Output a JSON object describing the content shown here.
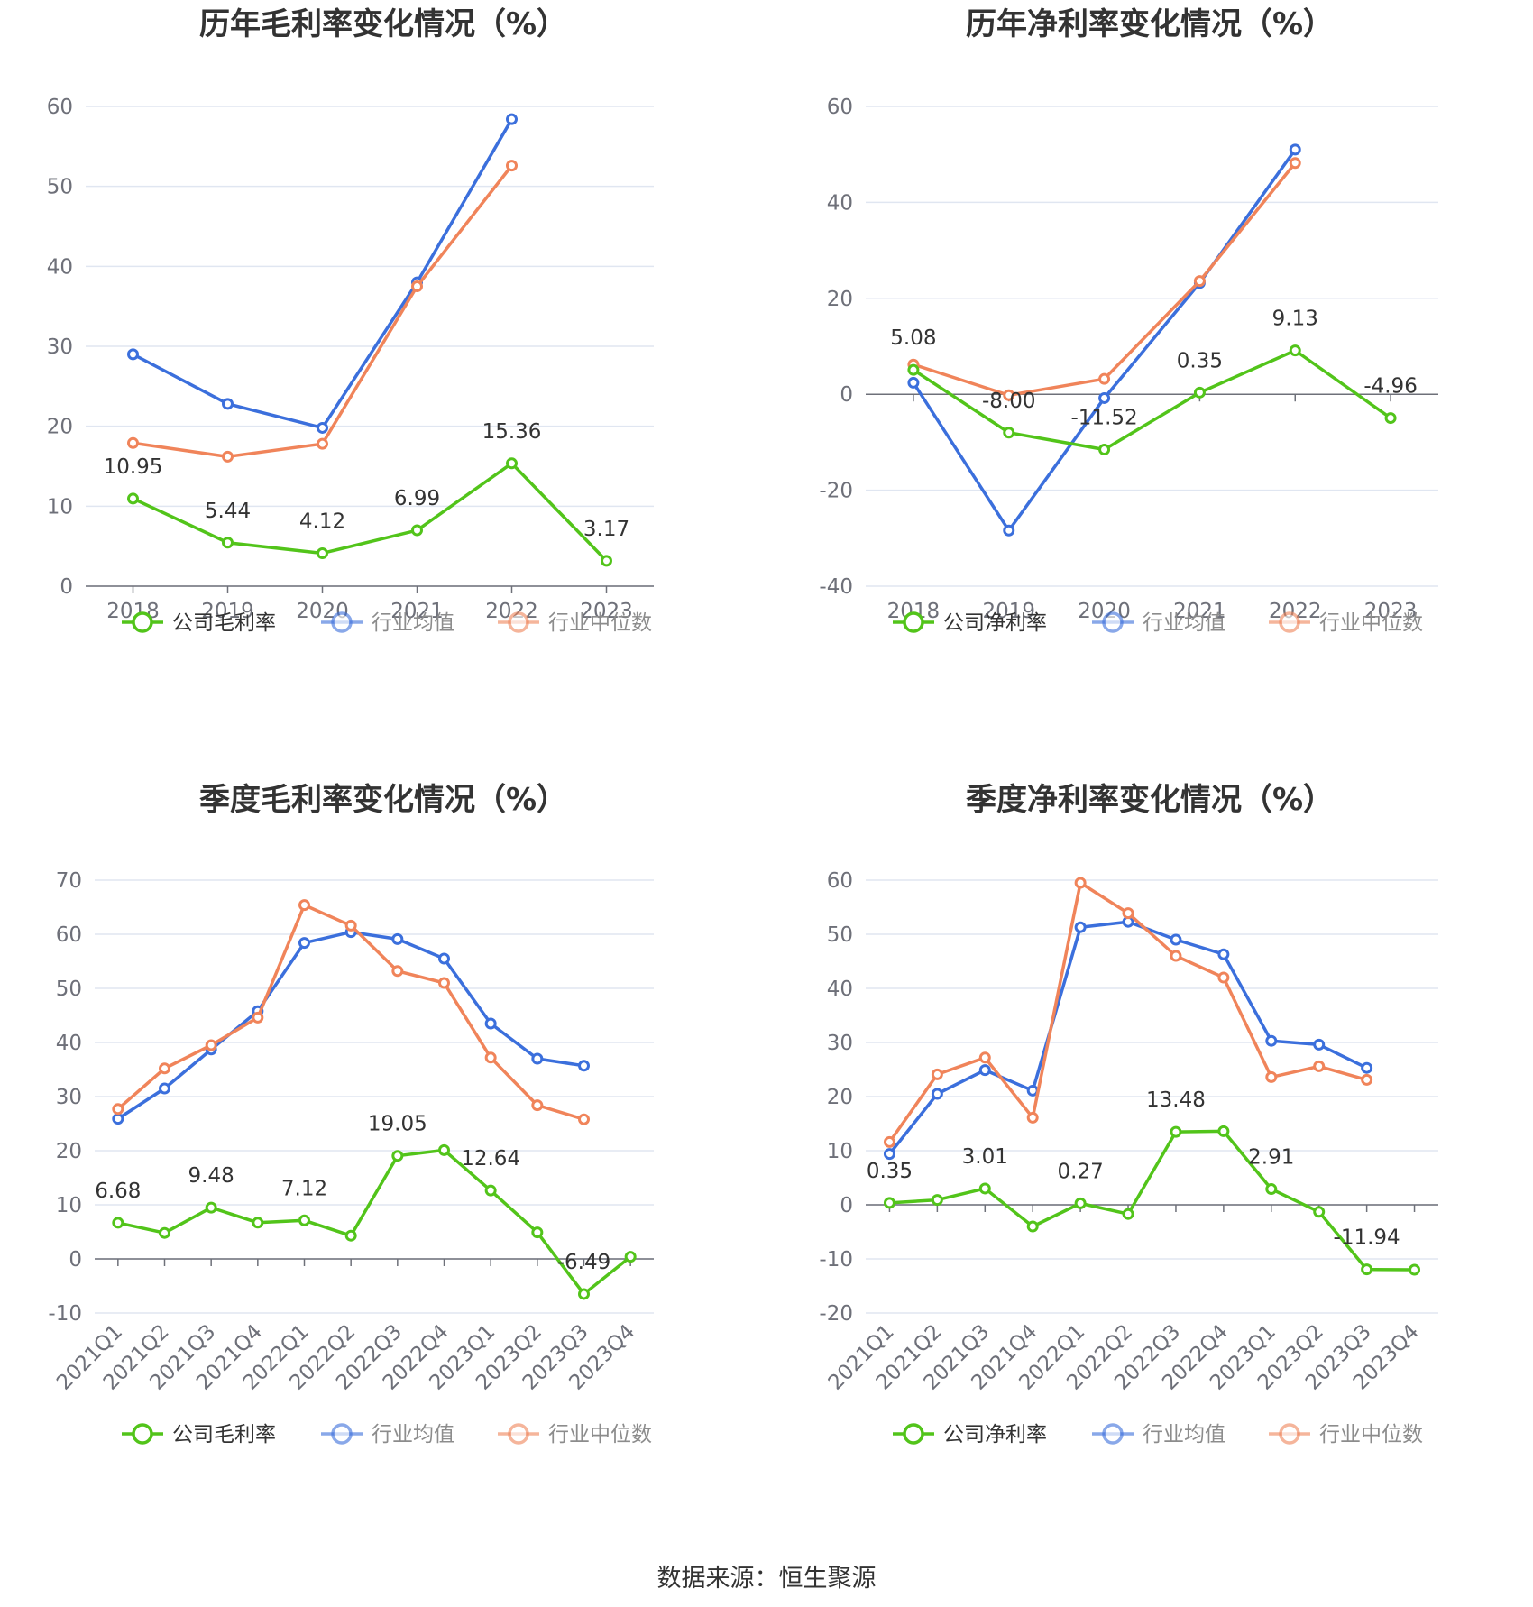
{
  "colors": {
    "company": "#52c41a",
    "mean": "#3b6fdc",
    "median": "#f0845a",
    "grid": "#e0e6f1",
    "axis": "#6e7079"
  },
  "source_text": "数据来源：恒生聚源",
  "chart_data": [
    {
      "type": "line",
      "title": "历年毛利率变化情况（%）",
      "categories": [
        "2018",
        "2019",
        "2020",
        "2021",
        "2022",
        "2023"
      ],
      "ylim": [
        0,
        60
      ],
      "yticks": [
        0,
        10,
        20,
        30,
        40,
        50,
        60
      ],
      "grid": true,
      "legend_position": "bottom",
      "series": [
        {
          "name": "公司毛利率",
          "color_key": "company",
          "values": [
            10.95,
            5.44,
            4.12,
            6.99,
            15.36,
            3.17
          ],
          "labels": [
            "10.95",
            "5.44",
            "4.12",
            "6.99",
            "15.36",
            "3.17"
          ]
        },
        {
          "name": "行业均值",
          "color_key": "mean",
          "values": [
            29.0,
            22.8,
            19.8,
            38.0,
            58.4,
            null
          ]
        },
        {
          "name": "行业中位数",
          "color_key": "median",
          "values": [
            17.9,
            16.2,
            17.8,
            37.5,
            52.6,
            null
          ]
        }
      ]
    },
    {
      "type": "line",
      "title": "历年净利率变化情况（%）",
      "categories": [
        "2018",
        "2019",
        "2020",
        "2021",
        "2022",
        "2023"
      ],
      "ylim": [
        -40,
        60
      ],
      "yticks": [
        -40,
        -20,
        0,
        20,
        40,
        60
      ],
      "grid": true,
      "legend_position": "bottom",
      "series": [
        {
          "name": "公司净利率",
          "color_key": "company",
          "values": [
            5.08,
            -8.0,
            -11.52,
            0.35,
            9.13,
            -4.96
          ],
          "labels": [
            "5.08",
            "-8.00",
            "-11.52",
            "0.35",
            "9.13",
            "-4.96"
          ]
        },
        {
          "name": "行业均值",
          "color_key": "mean",
          "values": [
            2.4,
            -28.4,
            -0.8,
            23.2,
            51.0,
            null
          ]
        },
        {
          "name": "行业中位数",
          "color_key": "median",
          "values": [
            6.2,
            -0.2,
            3.2,
            23.6,
            48.2,
            null
          ]
        }
      ]
    },
    {
      "type": "line",
      "title": "季度毛利率变化情况（%）",
      "categories": [
        "2021Q1",
        "2021Q2",
        "2021Q3",
        "2021Q4",
        "2022Q1",
        "2022Q2",
        "2022Q3",
        "2022Q4",
        "2023Q1",
        "2023Q2",
        "2023Q3",
        "2023Q4"
      ],
      "ylim": [
        -10,
        70
      ],
      "yticks": [
        -10,
        0,
        10,
        20,
        30,
        40,
        50,
        60,
        70
      ],
      "grid": true,
      "legend_position": "bottom",
      "series": [
        {
          "name": "公司毛利率",
          "color_key": "company",
          "values": [
            6.68,
            4.8,
            9.48,
            6.7,
            7.12,
            4.3,
            19.05,
            20.1,
            12.64,
            4.9,
            -6.49,
            0.4
          ],
          "labels": [
            "6.68",
            "",
            "9.48",
            "",
            "7.12",
            "",
            "19.05",
            "",
            "12.64",
            "",
            "-6.49",
            ""
          ]
        },
        {
          "name": "行业均值",
          "color_key": "mean",
          "values": [
            25.9,
            31.5,
            38.7,
            45.8,
            58.4,
            60.4,
            59.1,
            55.5,
            43.5,
            37.0,
            35.7,
            null
          ]
        },
        {
          "name": "行业中位数",
          "color_key": "median",
          "values": [
            27.7,
            35.2,
            39.5,
            44.6,
            65.4,
            61.6,
            53.2,
            51.0,
            37.2,
            28.4,
            25.8,
            null
          ]
        }
      ]
    },
    {
      "type": "line",
      "title": "季度净利率变化情况（%）",
      "categories": [
        "2021Q1",
        "2021Q2",
        "2021Q3",
        "2021Q4",
        "2022Q1",
        "2022Q2",
        "2022Q3",
        "2022Q4",
        "2023Q1",
        "2023Q2",
        "2023Q3",
        "2023Q4"
      ],
      "ylim": [
        -20,
        60
      ],
      "yticks": [
        -20,
        -10,
        0,
        10,
        20,
        30,
        40,
        50,
        60
      ],
      "grid": true,
      "legend_position": "bottom",
      "series": [
        {
          "name": "公司净利率",
          "color_key": "company",
          "values": [
            0.35,
            0.9,
            3.01,
            -4.0,
            0.27,
            -1.7,
            13.48,
            13.6,
            2.91,
            -1.3,
            -11.94,
            -12.0
          ],
          "labels": [
            "0.35",
            "",
            "3.01",
            "",
            "0.27",
            "",
            "13.48",
            "",
            "2.91",
            "",
            "-11.94",
            ""
          ]
        },
        {
          "name": "行业均值",
          "color_key": "mean",
          "values": [
            9.4,
            20.5,
            24.9,
            21.1,
            51.3,
            52.3,
            49.0,
            46.3,
            30.3,
            29.6,
            25.3,
            null
          ]
        },
        {
          "name": "行业中位数",
          "color_key": "median",
          "values": [
            11.6,
            24.1,
            27.2,
            16.1,
            59.5,
            53.9,
            46.0,
            42.0,
            23.6,
            25.6,
            23.1,
            null
          ]
        }
      ]
    }
  ]
}
